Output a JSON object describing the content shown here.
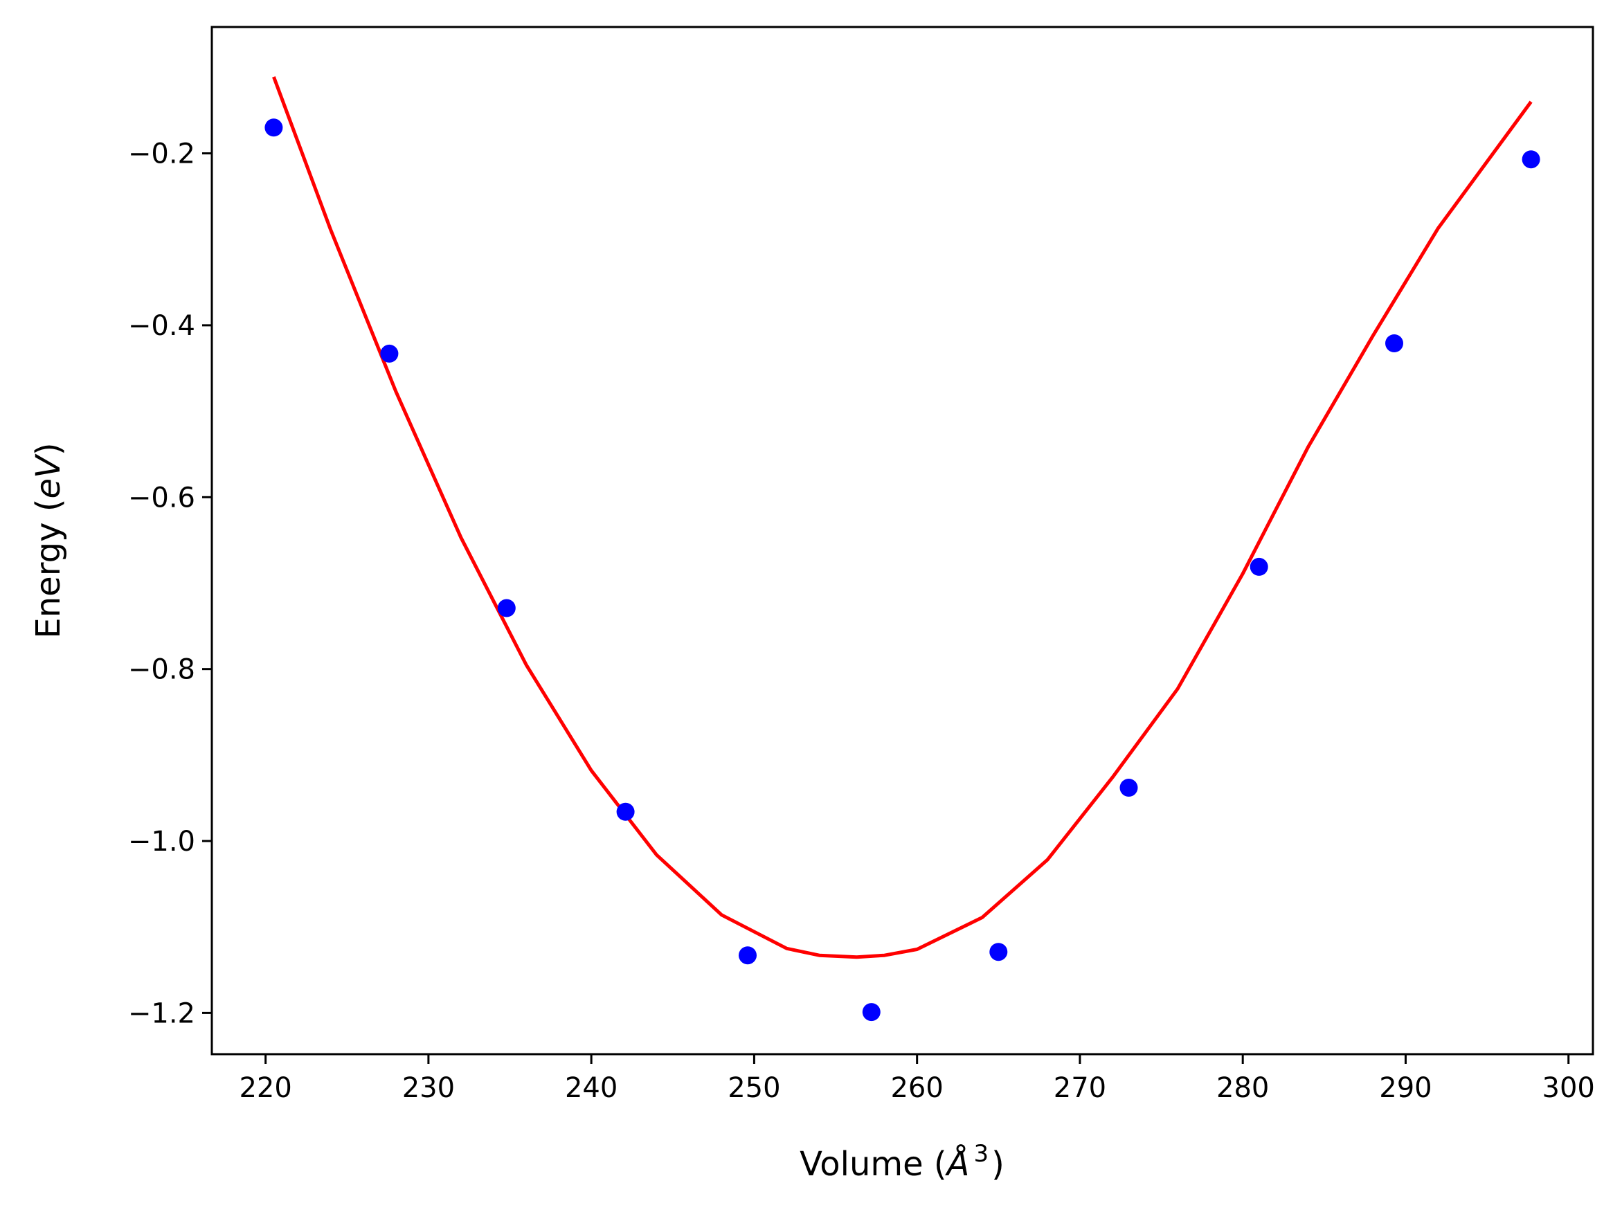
{
  "chart_data": {
    "type": "scatter",
    "title": "",
    "xlabel": {
      "prefix": "Volume (",
      "symbol": "Å",
      "superscript": "3",
      "suffix": ")"
    },
    "ylabel": {
      "prefix": "Energy (",
      "italic": "eV",
      "suffix": ")"
    },
    "xlim": [
      216.7,
      301.5
    ],
    "ylim": [
      -1.248,
      -0.053
    ],
    "x_ticks": [
      220,
      230,
      240,
      250,
      260,
      270,
      280,
      290,
      300
    ],
    "x_tick_labels": [
      "220",
      "230",
      "240",
      "250",
      "260",
      "270",
      "280",
      "290",
      "300"
    ],
    "y_ticks": [
      -0.2,
      -0.4,
      -0.6,
      -0.8,
      -1.0,
      -1.2
    ],
    "y_tick_labels": [
      "−0.2",
      "−0.4",
      "−0.6",
      "−0.8",
      "−1.0",
      "−1.2"
    ],
    "grid": false,
    "series": [
      {
        "kind": "points",
        "color": "#0000ff",
        "x": [
          220.5,
          227.6,
          234.8,
          242.1,
          249.6,
          257.2,
          265.0,
          273.0,
          281.0,
          289.3,
          297.7
        ],
        "y": [
          -0.17,
          -0.433,
          -0.729,
          -0.966,
          -1.133,
          -1.199,
          -1.129,
          -0.938,
          -0.681,
          -0.421,
          -0.207
        ]
      },
      {
        "kind": "fit_curve",
        "color": "#ff0000",
        "x": [
          220.5,
          224.0,
          228.0,
          232.0,
          236.0,
          240.0,
          244.0,
          248.0,
          252.0,
          254.0,
          256.3,
          258.0,
          260.0,
          264.0,
          268.0,
          272.0,
          276.0,
          280.0,
          284.0,
          288.0,
          292.0,
          297.7
        ],
        "y": [
          -0.111,
          -0.289,
          -0.477,
          -0.647,
          -0.795,
          -0.918,
          -1.016,
          -1.086,
          -1.125,
          -1.133,
          -1.135,
          -1.133,
          -1.126,
          -1.089,
          -1.022,
          -0.926,
          -0.823,
          -0.689,
          -0.542,
          -0.412,
          -0.287,
          -0.14
        ]
      }
    ]
  }
}
